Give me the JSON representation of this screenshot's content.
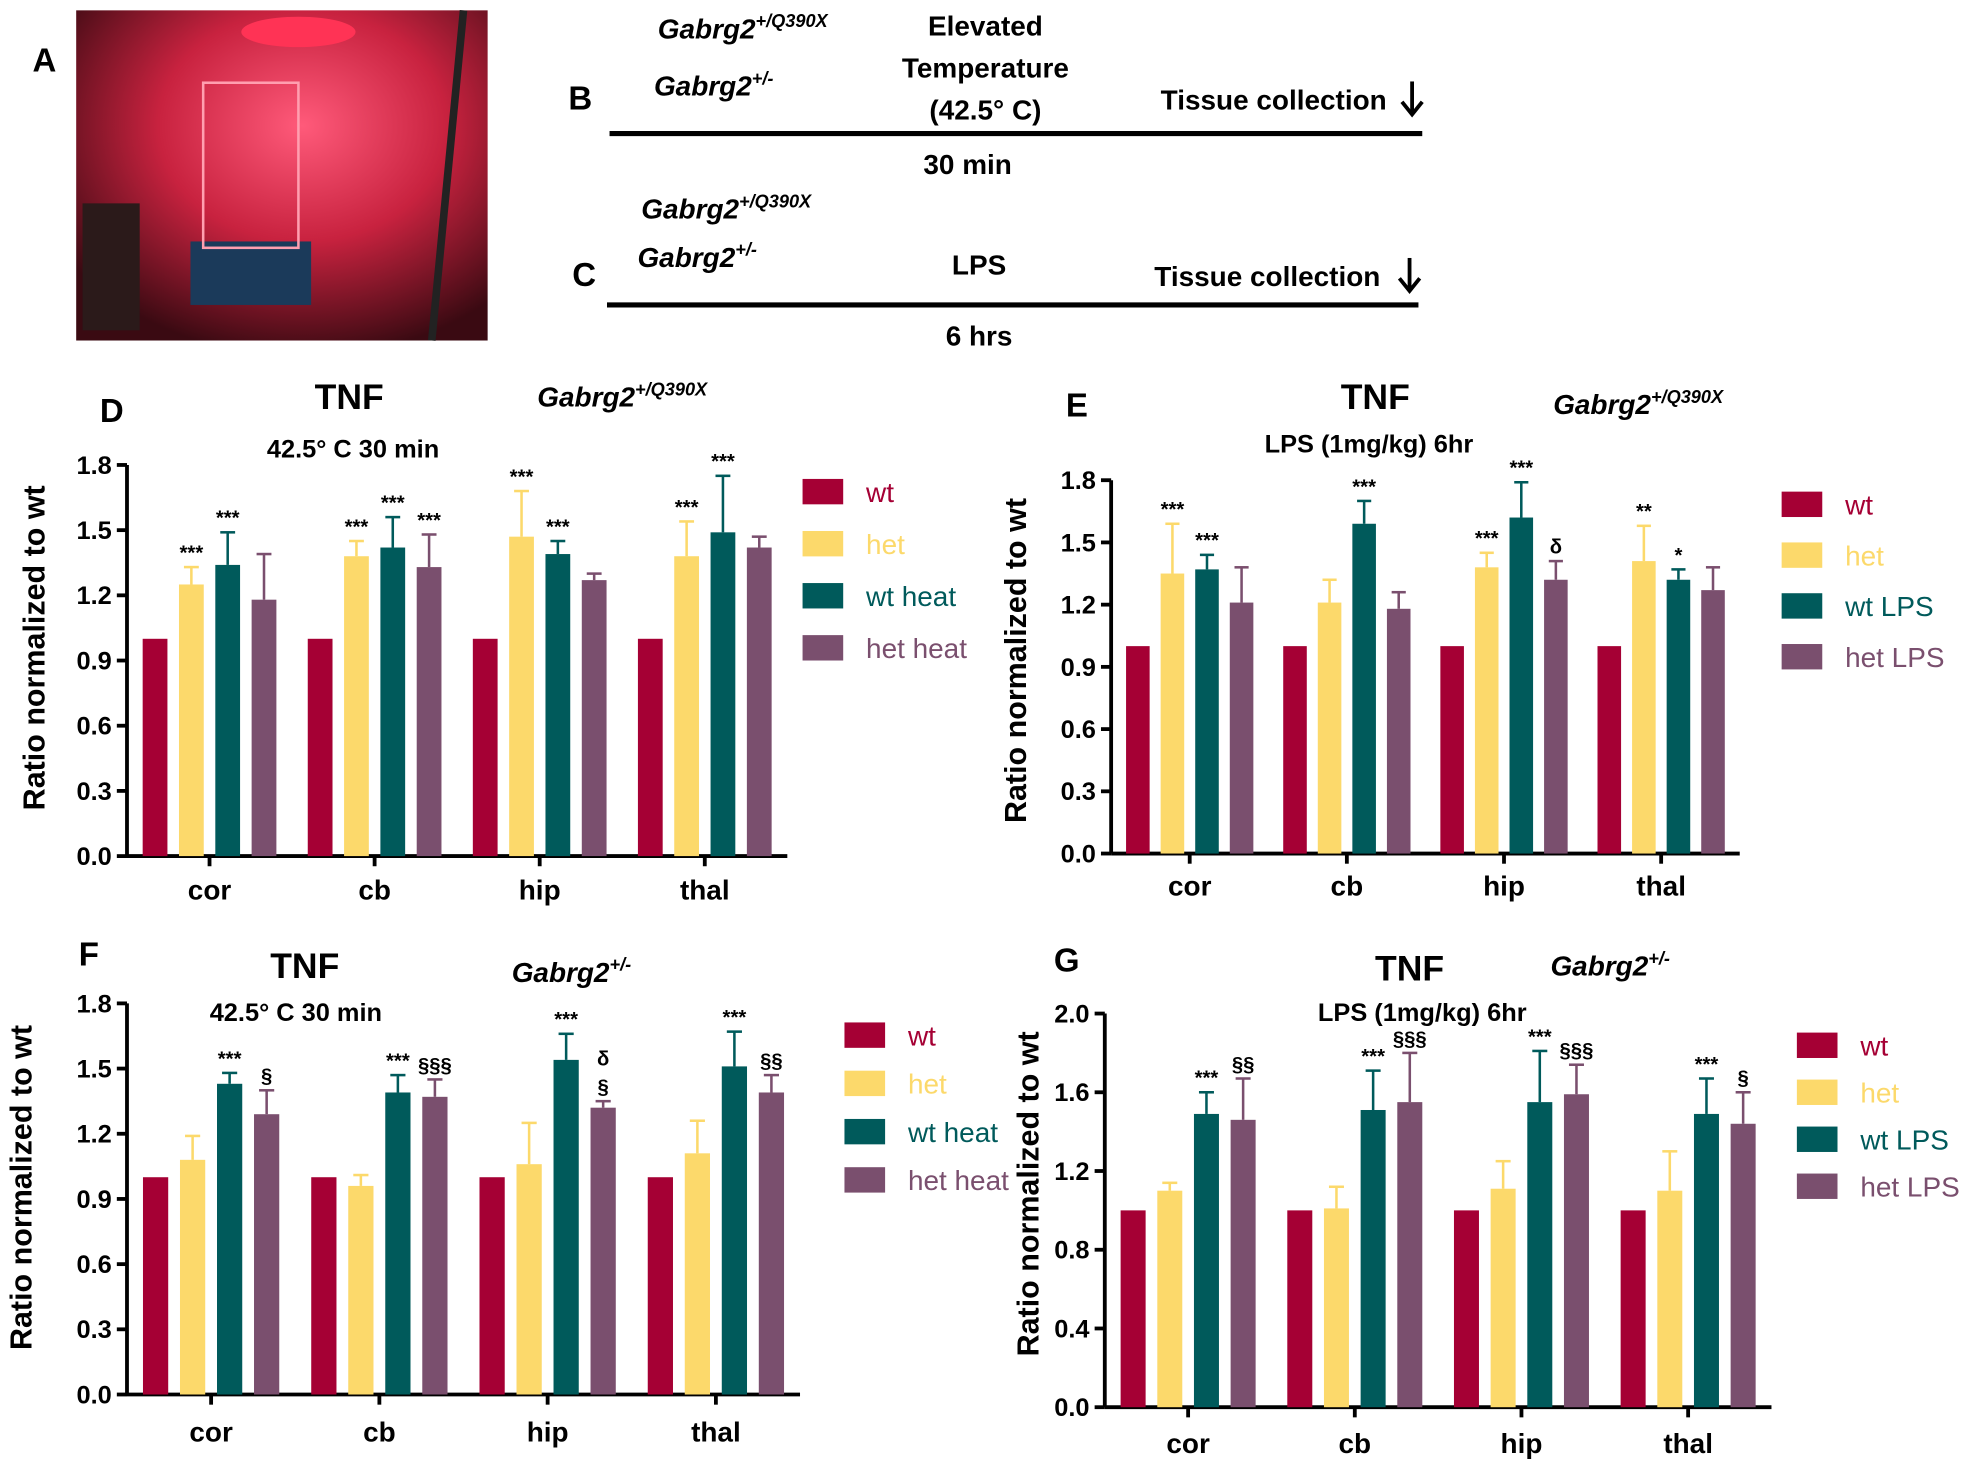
{
  "panel_a": {
    "label": "A"
  },
  "panel_b": {
    "label": "B",
    "genotypes": [
      {
        "base": "Gabrg2",
        "sup": "+/Q390X"
      },
      {
        "base": "Gabrg2",
        "sup": "+/-"
      }
    ],
    "treatment": [
      "Elevated",
      "Temperature",
      "(42.5° C)"
    ],
    "endpoint": "Tissue collection",
    "duration": "30 min"
  },
  "panel_c": {
    "label": "C",
    "genotypes": [
      {
        "base": "Gabrg2",
        "sup": "+/Q390X"
      },
      {
        "base": "Gabrg2",
        "sup": "+/-"
      }
    ],
    "treatment": [
      "LPS"
    ],
    "endpoint": "Tissue collection",
    "duration": "6 hrs"
  },
  "chart_data": [
    {
      "type": "bar",
      "panel_label": "D",
      "title": "TNF",
      "subtitle": "42.5° C 30 min",
      "genotype": {
        "base": "Gabrg2",
        "sup": "+/Q390X"
      },
      "y_label": "Ratio normalized to wt",
      "categories": [
        "cor",
        "cb",
        "hip",
        "thal"
      ],
      "ylim": [
        0,
        1.8
      ],
      "yticks": [
        {
          "value": 0,
          "label": "0.0"
        },
        0.3,
        0.6,
        0.9,
        1.2,
        1.5,
        1.8
      ],
      "series": [
        {
          "name": "wt",
          "color": "#a50034",
          "values": [
            1.0,
            1.0,
            1.0,
            1.0
          ],
          "errors": [
            0,
            0,
            0,
            0
          ],
          "annotations": [
            null,
            null,
            null,
            null
          ]
        },
        {
          "name": "het",
          "color": "#fcd96b",
          "values": [
            1.25,
            1.38,
            1.47,
            1.38
          ],
          "errors": [
            0.08,
            0.07,
            0.21,
            0.16
          ],
          "annotations": [
            "***",
            "***",
            "***",
            "***"
          ]
        },
        {
          "name": "wt heat",
          "color": "#005a5b",
          "values": [
            1.34,
            1.42,
            1.39,
            1.49
          ],
          "errors": [
            0.15,
            0.14,
            0.06,
            0.26
          ],
          "annotations": [
            "***",
            "***",
            "***",
            "***"
          ]
        },
        {
          "name": "het heat",
          "color": "#7a4f6e",
          "values": [
            1.18,
            1.33,
            1.27,
            1.42
          ],
          "errors": [
            0.21,
            0.15,
            0.03,
            0.05
          ],
          "annotations": [
            null,
            "***",
            null,
            null
          ]
        }
      ]
    },
    {
      "type": "bar",
      "panel_label": "E",
      "title": "TNF",
      "subtitle": "LPS (1mg/kg) 6hr",
      "genotype": {
        "base": "Gabrg2",
        "sup": "+/Q390X"
      },
      "y_label": "Ratio normalized to wt",
      "categories": [
        "cor",
        "cb",
        "hip",
        "thal"
      ],
      "ylim": [
        0,
        1.8
      ],
      "yticks": [
        {
          "value": 0,
          "label": "0.0"
        },
        0.3,
        0.6,
        0.9,
        1.2,
        1.5,
        1.8
      ],
      "series": [
        {
          "name": "wt",
          "color": "#a50034",
          "values": [
            1.0,
            1.0,
            1.0,
            1.0
          ],
          "errors": [
            0,
            0,
            0,
            0
          ],
          "annotations": [
            null,
            null,
            null,
            null
          ]
        },
        {
          "name": "het",
          "color": "#fcd96b",
          "values": [
            1.35,
            1.21,
            1.38,
            1.41
          ],
          "errors": [
            0.24,
            0.11,
            0.07,
            0.17
          ],
          "annotations": [
            "***",
            null,
            "***",
            "**"
          ]
        },
        {
          "name": "wt LPS",
          "color": "#005a5b",
          "values": [
            1.37,
            1.59,
            1.62,
            1.32
          ],
          "errors": [
            0.07,
            0.11,
            0.17,
            0.05
          ],
          "annotations": [
            "***",
            "***",
            "***",
            "*"
          ]
        },
        {
          "name": "het LPS",
          "color": "#7a4f6e",
          "values": [
            1.21,
            1.18,
            1.32,
            1.27
          ],
          "errors": [
            0.17,
            0.08,
            0.09,
            0.11
          ],
          "annotations": [
            null,
            null,
            "δ",
            null
          ]
        }
      ]
    },
    {
      "type": "bar",
      "panel_label": "F",
      "title": "TNF",
      "subtitle": "42.5° C 30 min",
      "genotype": {
        "base": "Gabrg2",
        "sup": "+/-"
      },
      "y_label": "Ratio normalized to wt",
      "categories": [
        "cor",
        "cb",
        "hip",
        "thal"
      ],
      "ylim": [
        0,
        1.8
      ],
      "yticks": [
        {
          "value": 0,
          "label": "0.0"
        },
        0.3,
        0.6,
        0.9,
        1.2,
        1.5,
        1.8
      ],
      "series": [
        {
          "name": "wt",
          "color": "#a50034",
          "values": [
            1.0,
            1.0,
            1.0,
            1.0
          ],
          "errors": [
            0,
            0,
            0,
            0
          ],
          "annotations": [
            null,
            null,
            null,
            null
          ]
        },
        {
          "name": "het",
          "color": "#fcd96b",
          "values": [
            1.08,
            0.96,
            1.06,
            1.11
          ],
          "errors": [
            0.11,
            0.05,
            0.19,
            0.15
          ],
          "annotations": [
            null,
            null,
            null,
            null
          ]
        },
        {
          "name": "wt heat",
          "color": "#005a5b",
          "values": [
            1.43,
            1.39,
            1.54,
            1.51
          ],
          "errors": [
            0.05,
            0.08,
            0.12,
            0.16
          ],
          "annotations": [
            "***",
            "***",
            "***",
            "***"
          ]
        },
        {
          "name": "het heat",
          "color": "#7a4f6e",
          "values": [
            1.29,
            1.37,
            1.32,
            1.39
          ],
          "errors": [
            0.11,
            0.08,
            0.03,
            0.08
          ],
          "annotations": [
            "§",
            "§§§",
            [
              "δ",
              "§"
            ],
            "§§"
          ]
        }
      ]
    },
    {
      "type": "bar",
      "panel_label": "G",
      "title": "TNF",
      "subtitle": "LPS (1mg/kg) 6hr",
      "genotype": {
        "base": "Gabrg2",
        "sup": "+/-"
      },
      "y_label": "Ratio normalized to wt",
      "categories": [
        "cor",
        "cb",
        "hip",
        "thal"
      ],
      "ylim": [
        0,
        2.0
      ],
      "yticks": [
        {
          "value": 0,
          "label": "0.0"
        },
        0.4,
        0.8,
        1.2,
        1.6,
        {
          "value": 2,
          "label": "2.0"
        }
      ],
      "series": [
        {
          "name": "wt",
          "color": "#a50034",
          "values": [
            1.0,
            1.0,
            1.0,
            1.0
          ],
          "errors": [
            0,
            0,
            0,
            0
          ],
          "annotations": [
            null,
            null,
            null,
            null
          ]
        },
        {
          "name": "het",
          "color": "#fcd96b",
          "values": [
            1.1,
            1.01,
            1.11,
            1.1
          ],
          "errors": [
            0.04,
            0.11,
            0.14,
            0.2
          ],
          "annotations": [
            null,
            null,
            null,
            null
          ]
        },
        {
          "name": "wt LPS",
          "color": "#005a5b",
          "values": [
            1.49,
            1.51,
            1.55,
            1.49
          ],
          "errors": [
            0.11,
            0.2,
            0.26,
            0.18
          ],
          "annotations": [
            "***",
            "***",
            "***",
            "***"
          ]
        },
        {
          "name": "het LPS",
          "color": "#7a4f6e",
          "values": [
            1.46,
            1.55,
            1.59,
            1.44
          ],
          "errors": [
            0.21,
            0.25,
            0.15,
            0.16
          ],
          "annotations": [
            "§§",
            "§§§",
            "§§§",
            "§"
          ]
        }
      ]
    }
  ]
}
